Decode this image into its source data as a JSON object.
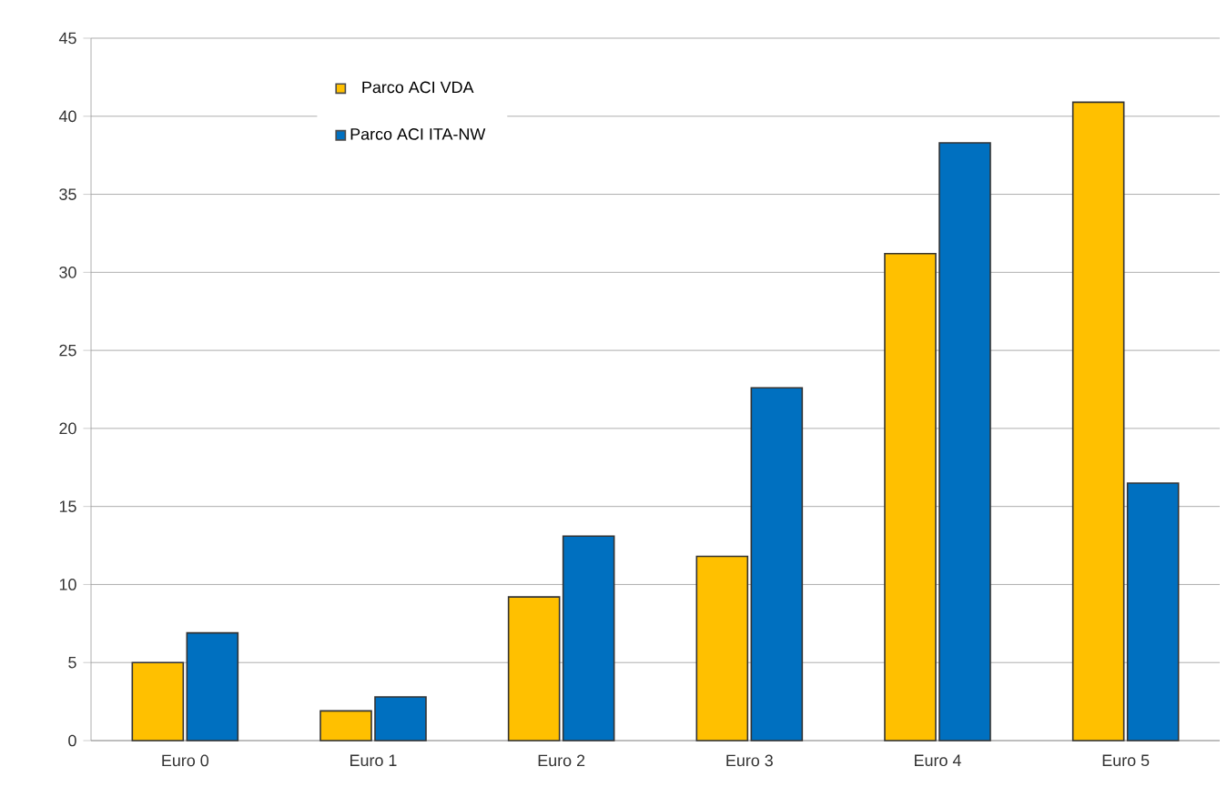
{
  "chart_data": {
    "type": "bar",
    "categories": [
      "Euro 0",
      "Euro 1",
      "Euro 2",
      "Euro 3",
      "Euro 4",
      "Euro 5"
    ],
    "series": [
      {
        "name": "Parco ACI VDA",
        "color": "#ffc000",
        "values": [
          5.0,
          1.9,
          9.2,
          11.8,
          31.2,
          40.9
        ]
      },
      {
        "name": "Parco ACI ITA-NW",
        "color": "#0070c0",
        "values": [
          6.9,
          2.8,
          13.1,
          22.6,
          38.3,
          16.5
        ]
      }
    ],
    "ylim": [
      0,
      45
    ],
    "yticks": [
      0,
      5,
      10,
      15,
      20,
      25,
      30,
      35,
      40,
      45
    ],
    "grid": "y",
    "legend": "top left"
  }
}
